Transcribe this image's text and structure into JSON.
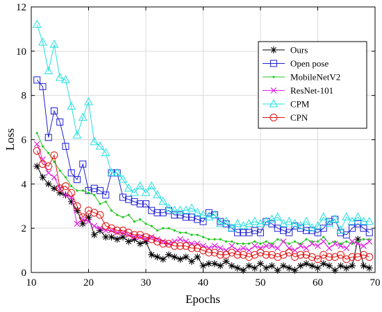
{
  "chart_data": {
    "type": "line",
    "title": "",
    "xlabel": "Epochs",
    "ylabel": "Loss",
    "xlim": [
      10,
      70
    ],
    "ylim": [
      0,
      12
    ],
    "xticks": [
      10,
      20,
      30,
      40,
      50,
      60,
      70
    ],
    "yticks": [
      0,
      2,
      4,
      6,
      8,
      10,
      12
    ],
    "grid": true,
    "legend_position": "top-right",
    "series": [
      {
        "name": "Ours",
        "color": "#000000",
        "marker": "asterisk",
        "x": [
          11,
          12,
          13,
          14,
          15,
          16,
          17,
          18,
          19,
          20,
          21,
          22,
          23,
          24,
          25,
          26,
          27,
          28,
          29,
          30,
          31,
          32,
          33,
          34,
          35,
          36,
          37,
          38,
          39,
          40,
          41,
          42,
          43,
          44,
          45,
          46,
          47,
          48,
          49,
          50,
          51,
          52,
          53,
          54,
          55,
          56,
          57,
          58,
          59,
          60,
          61,
          62,
          63,
          64,
          65,
          66,
          67,
          68,
          69
        ],
        "values": [
          4.8,
          4.3,
          4.0,
          3.8,
          3.6,
          3.5,
          3.2,
          2.8,
          2.2,
          2.5,
          1.7,
          1.9,
          1.6,
          1.6,
          1.5,
          1.6,
          1.4,
          1.5,
          1.3,
          1.4,
          0.8,
          0.7,
          0.6,
          0.8,
          0.7,
          0.6,
          0.7,
          0.5,
          0.7,
          0.3,
          0.4,
          0.4,
          0.3,
          0.5,
          0.3,
          0.2,
          0.1,
          0.3,
          0.2,
          0.4,
          0.2,
          0.3,
          0.1,
          0.3,
          0.2,
          0.1,
          0.3,
          0.4,
          0.3,
          0.2,
          0.4,
          0.3,
          0.1,
          0.3,
          0.2,
          0.3,
          1.5,
          0.3,
          0.2
        ]
      },
      {
        "name": "Open pose",
        "color": "#1f1fd6",
        "marker": "square",
        "x": [
          11,
          12,
          13,
          14,
          15,
          16,
          17,
          18,
          19,
          20,
          21,
          22,
          23,
          24,
          25,
          26,
          27,
          28,
          29,
          30,
          31,
          32,
          33,
          34,
          35,
          36,
          37,
          38,
          39,
          40,
          41,
          42,
          43,
          44,
          45,
          46,
          47,
          48,
          49,
          50,
          51,
          52,
          53,
          54,
          55,
          56,
          57,
          58,
          59,
          60,
          61,
          62,
          63,
          64,
          65,
          66,
          67,
          68,
          69
        ],
        "values": [
          8.7,
          8.4,
          6.1,
          7.3,
          6.8,
          5.7,
          4.5,
          4.2,
          4.9,
          3.7,
          3.8,
          3.7,
          3.5,
          4.5,
          4.5,
          3.4,
          3.3,
          3.2,
          3.1,
          3.1,
          2.8,
          2.7,
          2.7,
          2.8,
          2.6,
          2.6,
          2.5,
          2.5,
          2.4,
          2.3,
          2.7,
          2.6,
          2.3,
          2.2,
          2.0,
          1.8,
          1.8,
          1.8,
          1.9,
          1.8,
          2.3,
          2.2,
          2.0,
          1.9,
          1.8,
          2.1,
          2.0,
          1.9,
          1.9,
          1.8,
          2.0,
          2.3,
          2.4,
          1.8,
          1.7,
          2.0,
          2.2,
          2.0,
          1.8
        ]
      },
      {
        "name": "MobileNetV2",
        "color": "#20c820",
        "marker": "dot",
        "x": [
          11,
          12,
          13,
          14,
          15,
          16,
          17,
          18,
          19,
          20,
          21,
          22,
          23,
          24,
          25,
          26,
          27,
          28,
          29,
          30,
          31,
          32,
          33,
          34,
          35,
          36,
          37,
          38,
          39,
          40,
          41,
          42,
          43,
          44,
          45,
          46,
          47,
          48,
          49,
          50,
          51,
          52,
          53,
          54,
          55,
          56,
          57,
          58,
          59,
          60,
          61,
          62,
          63,
          64,
          65,
          66,
          67,
          68,
          69
        ],
        "values": [
          6.3,
          5.7,
          5.4,
          5.0,
          4.6,
          4.3,
          3.9,
          3.7,
          3.7,
          3.6,
          3.5,
          3.1,
          3.2,
          2.8,
          2.6,
          2.5,
          2.6,
          2.3,
          2.4,
          2.2,
          2.1,
          1.9,
          2.0,
          2.0,
          1.9,
          1.8,
          1.8,
          1.7,
          1.7,
          1.6,
          1.5,
          1.5,
          1.5,
          1.4,
          1.4,
          1.3,
          1.3,
          1.3,
          1.4,
          1.3,
          1.4,
          1.3,
          1.5,
          1.4,
          1.3,
          1.4,
          1.3,
          1.5,
          1.4,
          1.4,
          1.6,
          1.3,
          1.4,
          1.3,
          1.4,
          1.3,
          1.4,
          1.5,
          1.5
        ]
      },
      {
        "name": "ResNet-101",
        "color": "#e020e0",
        "marker": "x",
        "x": [
          11,
          12,
          13,
          14,
          15,
          16,
          17,
          18,
          19,
          20,
          21,
          22,
          23,
          24,
          25,
          26,
          27,
          28,
          29,
          30,
          31,
          32,
          33,
          34,
          35,
          36,
          37,
          38,
          39,
          40,
          41,
          42,
          43,
          44,
          45,
          46,
          47,
          48,
          49,
          50,
          51,
          52,
          53,
          54,
          55,
          56,
          57,
          58,
          59,
          60,
          61,
          62,
          63,
          64,
          65,
          66,
          67,
          68,
          69
        ],
        "values": [
          5.8,
          5.1,
          4.5,
          4.3,
          3.8,
          3.5,
          3.4,
          2.2,
          2.4,
          2.3,
          2.1,
          2.0,
          1.9,
          1.9,
          1.8,
          1.8,
          1.7,
          1.6,
          1.6,
          1.5,
          1.6,
          1.5,
          1.4,
          1.3,
          1.4,
          1.5,
          1.4,
          1.3,
          1.3,
          1.2,
          1.1,
          1.2,
          1.1,
          1.0,
          1.2,
          1.0,
          1.1,
          1.0,
          1.2,
          1.1,
          1.2,
          1.2,
          1.1,
          1.4,
          1.1,
          1.0,
          1.2,
          1.1,
          1.3,
          1.2,
          1.4,
          1.1,
          1.3,
          1.2,
          1.1,
          1.4,
          1.3,
          1.2,
          1.4
        ]
      },
      {
        "name": "CPM",
        "color": "#20e0e0",
        "marker": "triangle",
        "x": [
          11,
          12,
          13,
          14,
          15,
          16,
          17,
          18,
          19,
          20,
          21,
          22,
          23,
          24,
          25,
          26,
          27,
          28,
          29,
          30,
          31,
          32,
          33,
          34,
          35,
          36,
          37,
          38,
          39,
          40,
          41,
          42,
          43,
          44,
          45,
          46,
          47,
          48,
          49,
          50,
          51,
          52,
          53,
          54,
          55,
          56,
          57,
          58,
          59,
          60,
          61,
          62,
          63,
          64,
          65,
          66,
          67,
          68,
          69
        ],
        "values": [
          11.2,
          10.4,
          9.1,
          10.3,
          8.8,
          8.7,
          7.5,
          6.2,
          7.0,
          7.7,
          5.9,
          5.7,
          5.4,
          4.5,
          4.5,
          4.2,
          3.8,
          3.6,
          3.9,
          3.6,
          3.9,
          3.5,
          3.2,
          2.9,
          2.8,
          2.8,
          2.8,
          2.9,
          2.7,
          2.6,
          2.5,
          2.6,
          2.2,
          2.3,
          2.0,
          2.2,
          2.1,
          2.2,
          2.3,
          2.2,
          2.3,
          2.4,
          2.5,
          2.2,
          2.3,
          2.2,
          2.1,
          2.3,
          2.0,
          2.1,
          2.5,
          2.2,
          2.4,
          1.9,
          2.5,
          2.3,
          2.5,
          2.3,
          2.3
        ]
      },
      {
        "name": "CPN",
        "color": "#e01010",
        "marker": "circle",
        "x": [
          11,
          12,
          13,
          14,
          15,
          16,
          17,
          18,
          19,
          20,
          21,
          22,
          23,
          24,
          25,
          26,
          27,
          28,
          29,
          30,
          31,
          32,
          33,
          34,
          35,
          36,
          37,
          38,
          39,
          40,
          41,
          42,
          43,
          44,
          45,
          46,
          47,
          48,
          49,
          50,
          51,
          52,
          53,
          54,
          55,
          56,
          57,
          58,
          59,
          60,
          61,
          62,
          63,
          64,
          65,
          66,
          67,
          68,
          69
        ],
        "values": [
          5.5,
          4.9,
          4.8,
          5.3,
          3.8,
          3.9,
          3.6,
          3.0,
          2.5,
          2.8,
          2.7,
          2.6,
          2.1,
          2.0,
          1.9,
          1.9,
          1.8,
          1.7,
          1.7,
          1.6,
          1.5,
          1.4,
          1.3,
          1.3,
          1.2,
          1.2,
          1.2,
          1.1,
          1.1,
          1.0,
          0.9,
          0.9,
          0.8,
          0.8,
          0.9,
          0.8,
          0.8,
          0.7,
          0.8,
          0.9,
          0.8,
          0.8,
          0.7,
          0.8,
          0.9,
          0.7,
          0.8,
          0.8,
          0.7,
          0.6,
          0.8,
          0.7,
          0.7,
          0.8,
          0.6,
          0.7,
          0.7,
          0.8,
          0.7
        ]
      }
    ]
  }
}
